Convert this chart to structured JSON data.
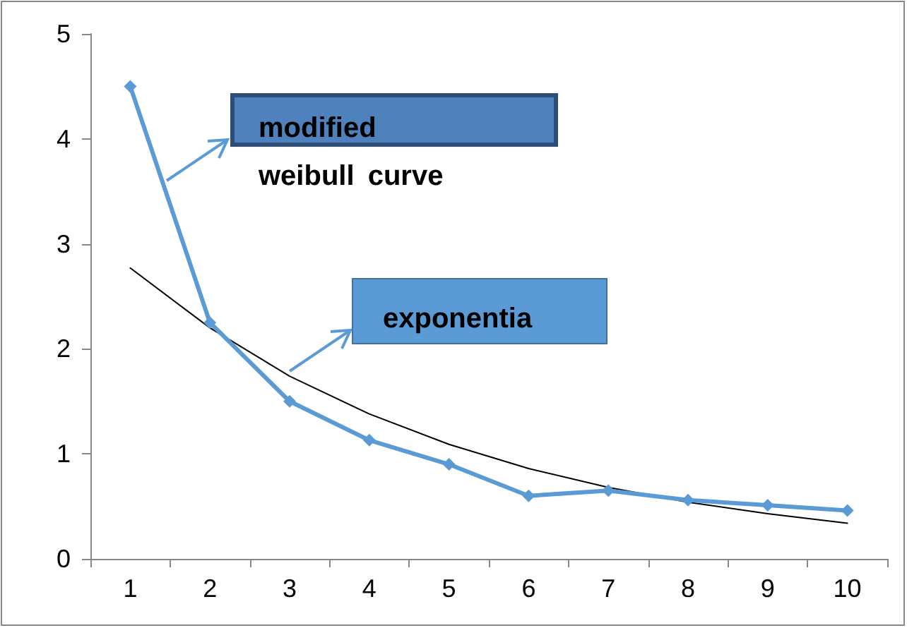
{
  "chart_data": {
    "type": "line",
    "categories": [
      "1",
      "2",
      "3",
      "4",
      "5",
      "6",
      "7",
      "8",
      "9",
      "10"
    ],
    "series": [
      {
        "name": "modified weibull curve",
        "color": "#5b9bd5",
        "marker": "diamond",
        "values": [
          4.5,
          2.25,
          1.5,
          1.13,
          0.9,
          0.6,
          0.65,
          0.56,
          0.51,
          0.46
        ]
      },
      {
        "name": "exponentia",
        "color": "#000000",
        "marker": "none",
        "values": [
          2.77,
          2.2,
          1.74,
          1.38,
          1.09,
          0.86,
          0.68,
          0.54,
          0.43,
          0.34
        ]
      }
    ],
    "ylim": [
      0,
      5
    ],
    "yticks": [
      0,
      1,
      2,
      3,
      4,
      5
    ],
    "grid": false
  }
}
